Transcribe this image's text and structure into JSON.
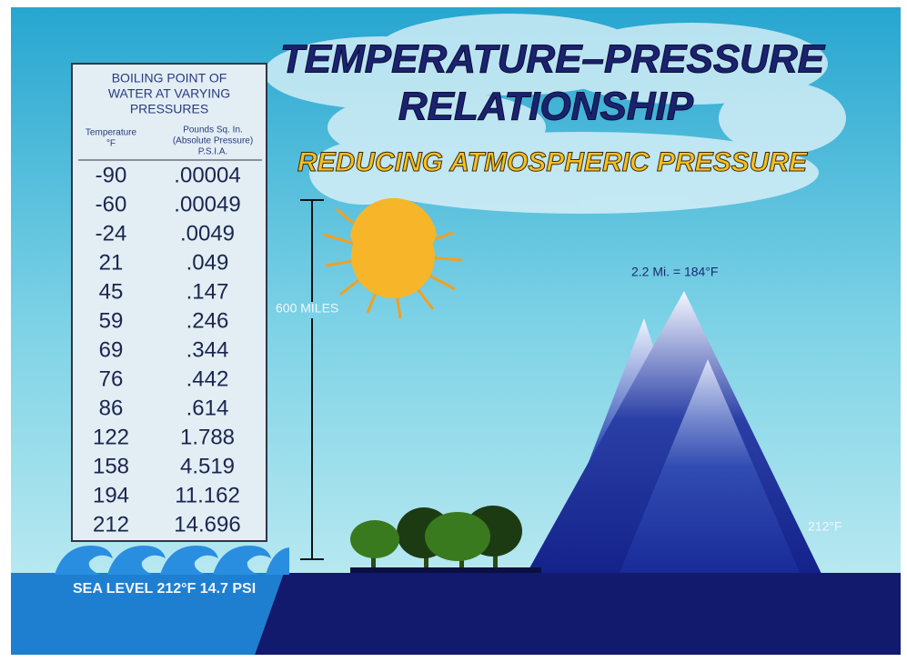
{
  "title": {
    "lines": [
      "TEMPERATURE–PRESSURE",
      "RELATIONSHIP"
    ],
    "subtitle": "REDUCING ATMOSPHERIC PRESSURE"
  },
  "table": {
    "header": [
      "BOILING POINT OF",
      "WATER AT VARYING",
      "PRESSURES"
    ],
    "columns": [
      [
        "Temperature",
        "°F"
      ],
      [
        "Pounds Sq. In.",
        "(Absolute Pressure)",
        "P.S.I.A."
      ]
    ],
    "rows": [
      [
        "-90",
        ".00004"
      ],
      [
        "-60",
        ".00049"
      ],
      [
        "-24",
        ".0049"
      ],
      [
        "21",
        ".049"
      ],
      [
        "45",
        ".147"
      ],
      [
        "59",
        ".246"
      ],
      [
        "69",
        ".344"
      ],
      [
        "76",
        ".442"
      ],
      [
        "86",
        ".614"
      ],
      [
        "122",
        "1.788"
      ],
      [
        "158",
        "4.519"
      ],
      [
        "194",
        "11.162"
      ],
      [
        "212",
        "14.696"
      ]
    ]
  },
  "labels": {
    "distance": "600 MILES",
    "altitude": "2.2 Mi. = 184°F",
    "base": "212°F",
    "sea_level": "SEA LEVEL 212°F 14.7 PSI"
  }
}
